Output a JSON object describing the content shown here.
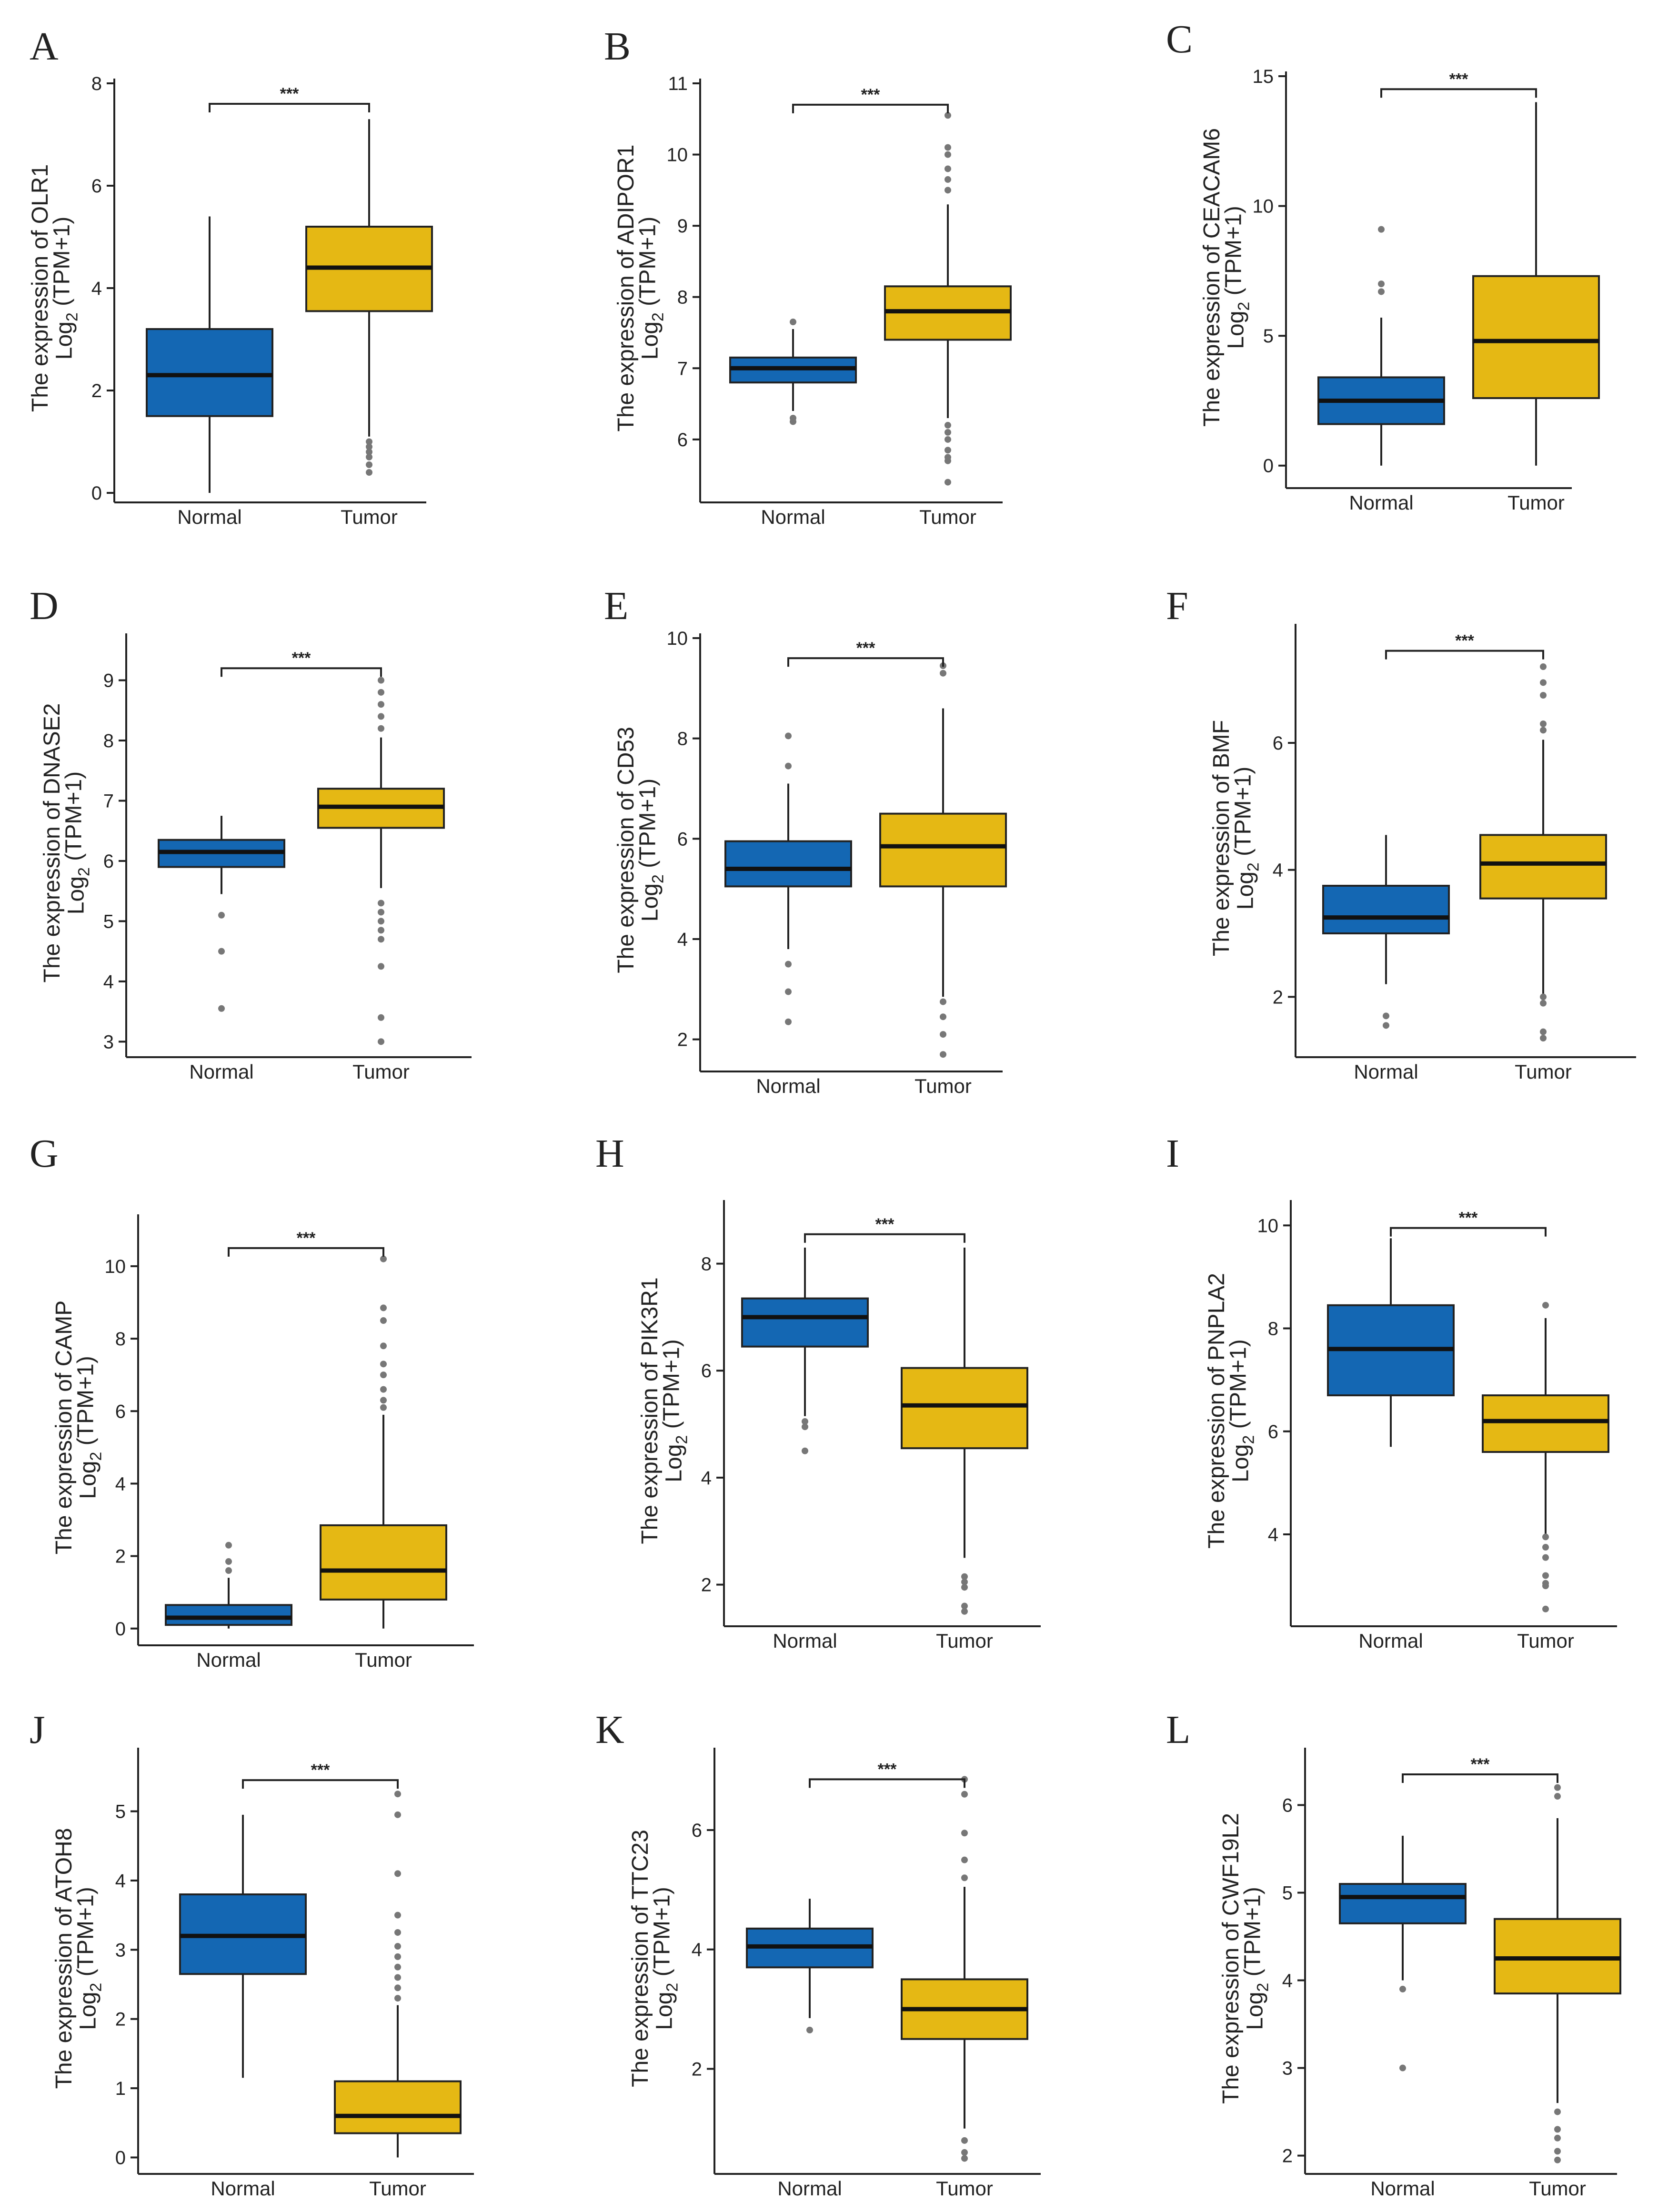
{
  "colors": {
    "Normal": "#1467b3",
    "Tumor": "#e5b814"
  },
  "chart_data": [
    {
      "letter": "A",
      "gene": "OLR1",
      "type": "box",
      "categories": [
        "Normal",
        "Tumor"
      ],
      "ylim": [
        0,
        8
      ],
      "yticks": [
        0,
        2,
        4,
        6,
        8
      ],
      "tick_labels": [
        "0",
        "2",
        "4",
        "6",
        "8"
      ],
      "ylabel_prefix": "The expression of OLR1",
      "ylabel_log": "Log",
      "ylabel_sub": "2",
      "ylabel_rest": " (TPM+1)",
      "significance": "***",
      "bracket_y": 7.6,
      "boxes": [
        {
          "name": "Normal",
          "lower_whisker": 0,
          "q1": 1.5,
          "median": 2.3,
          "q3": 3.2,
          "upper_whisker": 5.4,
          "outliers": []
        },
        {
          "name": "Tumor",
          "lower_whisker": 1.1,
          "q1": 3.55,
          "median": 4.4,
          "q3": 5.2,
          "upper_whisker": 7.3,
          "outliers": [
            0.4,
            0.55,
            0.7,
            0.8,
            0.9,
            1.0
          ]
        }
      ]
    },
    {
      "letter": "B",
      "gene": "ADIPOR1",
      "type": "box",
      "categories": [
        "Normal",
        "Tumor"
      ],
      "ylim": [
        5.25,
        11
      ],
      "yticks": [
        6,
        7,
        8,
        9,
        10,
        11
      ],
      "tick_labels": [
        "6",
        "7",
        "8",
        "9",
        "10",
        "11"
      ],
      "ylabel_prefix": "The expression of ADIPOR1",
      "ylabel_log": "Log",
      "ylabel_sub": "2",
      "ylabel_rest": " (TPM+1)",
      "significance": "***",
      "bracket_y": 10.7,
      "boxes": [
        {
          "name": "Normal",
          "lower_whisker": 6.4,
          "q1": 6.8,
          "median": 7.0,
          "q3": 7.15,
          "upper_whisker": 7.55,
          "outliers": [
            6.25,
            6.3,
            7.65
          ]
        },
        {
          "name": "Tumor",
          "lower_whisker": 6.3,
          "q1": 7.4,
          "median": 7.8,
          "q3": 8.15,
          "upper_whisker": 9.3,
          "outliers": [
            5.4,
            5.7,
            5.75,
            5.85,
            6.0,
            6.1,
            6.2,
            9.5,
            9.65,
            9.8,
            10.0,
            10.1,
            10.55
          ]
        }
      ]
    },
    {
      "letter": "C",
      "gene": "CEACAM6",
      "type": "box",
      "categories": [
        "Normal",
        "Tumor"
      ],
      "ylim": [
        -0.5,
        15
      ],
      "yticks": [
        0,
        5,
        10,
        15
      ],
      "tick_labels": [
        "0",
        "5",
        "10",
        "15"
      ],
      "ylabel_prefix": "The expression of CEACAM6",
      "ylabel_log": "Log",
      "ylabel_sub": "2",
      "ylabel_rest": " (TPM+1)",
      "significance": "***",
      "bracket_y": 14.5,
      "boxes": [
        {
          "name": "Normal",
          "lower_whisker": 0,
          "q1": 1.6,
          "median": 2.5,
          "q3": 3.4,
          "upper_whisker": 5.7,
          "outliers": [
            6.7,
            7.0,
            9.1
          ]
        },
        {
          "name": "Tumor",
          "lower_whisker": 0,
          "q1": 2.6,
          "median": 4.8,
          "q3": 7.3,
          "upper_whisker": 14.0,
          "outliers": []
        }
      ]
    },
    {
      "letter": "D",
      "gene": "DNASE2",
      "type": "box",
      "categories": [
        "Normal",
        "Tumor"
      ],
      "ylim": [
        2.9,
        9.7
      ],
      "yticks": [
        3,
        4,
        5,
        6,
        7,
        8,
        9
      ],
      "tick_labels": [
        "3",
        "4",
        "5",
        "6",
        "7",
        "8",
        "9"
      ],
      "ylabel_prefix": "The expression of DNASE2",
      "ylabel_log": "Log",
      "ylabel_sub": "2",
      "ylabel_rest": " (TPM+1)",
      "significance": "***",
      "bracket_y": 9.2,
      "boxes": [
        {
          "name": "Normal",
          "lower_whisker": 5.45,
          "q1": 5.9,
          "median": 6.15,
          "q3": 6.35,
          "upper_whisker": 6.75,
          "outliers": [
            3.55,
            4.5,
            5.1
          ]
        },
        {
          "name": "Tumor",
          "lower_whisker": 5.55,
          "q1": 6.55,
          "median": 6.9,
          "q3": 7.2,
          "upper_whisker": 8.05,
          "outliers": [
            3.0,
            3.4,
            4.25,
            4.7,
            4.85,
            5.0,
            5.15,
            5.3,
            8.2,
            8.4,
            8.6,
            8.8,
            9.0
          ]
        }
      ]
    },
    {
      "letter": "E",
      "gene": "CD53",
      "type": "box",
      "categories": [
        "Normal",
        "Tumor"
      ],
      "ylim": [
        1.55,
        10
      ],
      "yticks": [
        2,
        4,
        6,
        8,
        10
      ],
      "tick_labels": [
        "2",
        "4",
        "6",
        "8",
        "10"
      ],
      "ylabel_prefix": "The expression of CD53",
      "ylabel_log": "Log",
      "ylabel_sub": "2",
      "ylabel_rest": " (TPM+1)",
      "significance": "***",
      "bracket_y": 9.6,
      "boxes": [
        {
          "name": "Normal",
          "lower_whisker": 3.8,
          "q1": 5.05,
          "median": 5.4,
          "q3": 5.95,
          "upper_whisker": 7.1,
          "outliers": [
            2.35,
            2.95,
            3.5,
            7.45,
            8.05
          ]
        },
        {
          "name": "Tumor",
          "lower_whisker": 2.85,
          "q1": 5.05,
          "median": 5.85,
          "q3": 6.5,
          "upper_whisker": 8.6,
          "outliers": [
            1.7,
            2.1,
            2.45,
            2.75,
            9.3,
            9.45
          ]
        }
      ]
    },
    {
      "letter": "F",
      "gene": "BMF",
      "type": "box",
      "categories": [
        "Normal",
        "Tumor"
      ],
      "ylim": [
        1.2,
        7.8
      ],
      "yticks": [
        2,
        4,
        6
      ],
      "tick_labels": [
        "2",
        "4",
        "6"
      ],
      "ylabel_prefix": "The expression of BMF",
      "ylabel_log": "Log",
      "ylabel_sub": "2",
      "ylabel_rest": " (TPM+1)",
      "significance": "***",
      "bracket_y": 7.45,
      "boxes": [
        {
          "name": "Normal",
          "lower_whisker": 2.2,
          "q1": 3.0,
          "median": 3.25,
          "q3": 3.75,
          "upper_whisker": 4.55,
          "outliers": [
            1.55,
            1.7
          ]
        },
        {
          "name": "Tumor",
          "lower_whisker": 2.05,
          "q1": 3.55,
          "median": 4.1,
          "q3": 4.55,
          "upper_whisker": 6.05,
          "outliers": [
            1.35,
            1.45,
            1.9,
            2.0,
            6.2,
            6.3,
            6.75,
            6.95,
            7.2
          ]
        }
      ]
    },
    {
      "letter": "G",
      "gene": "CAMP",
      "type": "box",
      "categories": [
        "Normal",
        "Tumor"
      ],
      "ylim": [
        -0.2,
        11.3
      ],
      "yticks": [
        0,
        2,
        4,
        6,
        8,
        10
      ],
      "tick_labels": [
        "0",
        "2",
        "4",
        "6",
        "8",
        "10"
      ],
      "ylabel_prefix": "The expression of CAMP",
      "ylabel_log": "Log",
      "ylabel_sub": "2",
      "ylabel_rest": " (TPM+1)",
      "significance": "***",
      "bracket_y": 10.5,
      "boxes": [
        {
          "name": "Normal",
          "lower_whisker": 0,
          "q1": 0.1,
          "median": 0.3,
          "q3": 0.65,
          "upper_whisker": 1.4,
          "outliers": [
            1.6,
            1.85,
            2.3
          ]
        },
        {
          "name": "Tumor",
          "lower_whisker": 0,
          "q1": 0.8,
          "median": 1.6,
          "q3": 2.85,
          "upper_whisker": 5.9,
          "outliers": [
            6.1,
            6.3,
            6.6,
            7.0,
            7.3,
            7.8,
            8.5,
            8.85,
            10.2
          ]
        }
      ]
    },
    {
      "letter": "H",
      "gene": "PIK3R1",
      "type": "box",
      "categories": [
        "Normal",
        "Tumor"
      ],
      "ylim": [
        1.4,
        9.1
      ],
      "yticks": [
        2,
        4,
        6,
        8
      ],
      "tick_labels": [
        "2",
        "4",
        "6",
        "8"
      ],
      "ylabel_prefix": "The expression of PIK3R1",
      "ylabel_log": "Log",
      "ylabel_sub": "2",
      "ylabel_rest": " (TPM+1)",
      "significance": "***",
      "bracket_y": 8.55,
      "boxes": [
        {
          "name": "Normal",
          "lower_whisker": 5.15,
          "q1": 6.45,
          "median": 7.0,
          "q3": 7.35,
          "upper_whisker": 8.3,
          "outliers": [
            4.5,
            4.95,
            5.05
          ]
        },
        {
          "name": "Tumor",
          "lower_whisker": 2.5,
          "q1": 4.55,
          "median": 5.35,
          "q3": 6.05,
          "upper_whisker": 8.3,
          "outliers": [
            1.5,
            1.6,
            1.95,
            2.05,
            2.15
          ]
        }
      ]
    },
    {
      "letter": "I",
      "gene": "PNPLA2",
      "type": "box",
      "categories": [
        "Normal",
        "Tumor"
      ],
      "ylim": [
        2.4,
        10.4
      ],
      "yticks": [
        4,
        6,
        8,
        10
      ],
      "tick_labels": [
        "4",
        "6",
        "8",
        "10"
      ],
      "ylabel_prefix": "The expression of PNPLA2",
      "ylabel_log": "Log",
      "ylabel_sub": "2",
      "ylabel_rest": " (TPM+1)",
      "significance": "***",
      "bracket_y": 9.95,
      "boxes": [
        {
          "name": "Normal",
          "lower_whisker": 5.7,
          "q1": 6.7,
          "median": 7.6,
          "q3": 8.45,
          "upper_whisker": 9.75,
          "outliers": []
        },
        {
          "name": "Tumor",
          "lower_whisker": 4.0,
          "q1": 5.6,
          "median": 6.2,
          "q3": 6.7,
          "upper_whisker": 8.2,
          "outliers": [
            2.55,
            3.0,
            3.05,
            3.2,
            3.55,
            3.75,
            3.95,
            8.45
          ]
        }
      ]
    },
    {
      "letter": "J",
      "gene": "ATOH8",
      "type": "box",
      "categories": [
        "Normal",
        "Tumor"
      ],
      "ylim": [
        -0.1,
        5.85
      ],
      "yticks": [
        0,
        1,
        2,
        3,
        4,
        5
      ],
      "tick_labels": [
        "0",
        "1",
        "2",
        "3",
        "4",
        "5"
      ],
      "ylabel_prefix": "The expression of ATOH8",
      "ylabel_log": "Log",
      "ylabel_sub": "2",
      "ylabel_rest": " (TPM+1)",
      "significance": "***",
      "bracket_y": 5.45,
      "boxes": [
        {
          "name": "Normal",
          "lower_whisker": 1.15,
          "q1": 2.65,
          "median": 3.2,
          "q3": 3.8,
          "upper_whisker": 4.95,
          "outliers": []
        },
        {
          "name": "Tumor",
          "lower_whisker": 0,
          "q1": 0.35,
          "median": 0.6,
          "q3": 1.1,
          "upper_whisker": 2.2,
          "outliers": [
            2.3,
            2.45,
            2.6,
            2.75,
            2.9,
            3.05,
            3.25,
            3.5,
            4.1,
            4.95,
            5.25
          ]
        }
      ]
    },
    {
      "letter": "K",
      "gene": "TTC23",
      "type": "box",
      "categories": [
        "Normal",
        "Tumor"
      ],
      "ylim": [
        0.4,
        7.3
      ],
      "yticks": [
        2,
        4,
        6
      ],
      "tick_labels": [
        "2",
        "4",
        "6"
      ],
      "ylabel_prefix": "The expression of TTC23",
      "ylabel_log": "Log",
      "ylabel_sub": "2",
      "ylabel_rest": " (TPM+1)",
      "significance": "***",
      "bracket_y": 6.85,
      "boxes": [
        {
          "name": "Normal",
          "lower_whisker": 2.85,
          "q1": 3.7,
          "median": 4.05,
          "q3": 4.35,
          "upper_whisker": 4.85,
          "outliers": [
            2.65
          ]
        },
        {
          "name": "Tumor",
          "lower_whisker": 1.0,
          "q1": 2.5,
          "median": 3.0,
          "q3": 3.5,
          "upper_whisker": 5.05,
          "outliers": [
            0.5,
            0.6,
            0.8,
            5.2,
            5.5,
            5.95,
            6.6,
            6.85
          ]
        }
      ]
    },
    {
      "letter": "L",
      "gene": "CWF19L2",
      "type": "box",
      "categories": [
        "Normal",
        "Tumor"
      ],
      "ylim": [
        1.9,
        6.6
      ],
      "yticks": [
        2,
        3,
        4,
        5,
        6
      ],
      "tick_labels": [
        "2",
        "3",
        "4",
        "5",
        "6"
      ],
      "ylabel_prefix": "The expression of CWF19L2",
      "ylabel_log": "Log",
      "ylabel_sub": "2",
      "ylabel_rest": " (TPM+1)",
      "significance": "***",
      "bracket_y": 6.35,
      "boxes": [
        {
          "name": "Normal",
          "lower_whisker": 4.0,
          "q1": 4.65,
          "median": 4.95,
          "q3": 5.1,
          "upper_whisker": 5.65,
          "outliers": [
            3.0,
            3.9
          ]
        },
        {
          "name": "Tumor",
          "lower_whisker": 2.6,
          "q1": 3.85,
          "median": 4.25,
          "q3": 4.7,
          "upper_whisker": 5.85,
          "outliers": [
            1.95,
            2.05,
            2.2,
            2.3,
            2.5,
            6.1,
            6.2
          ]
        }
      ]
    }
  ]
}
